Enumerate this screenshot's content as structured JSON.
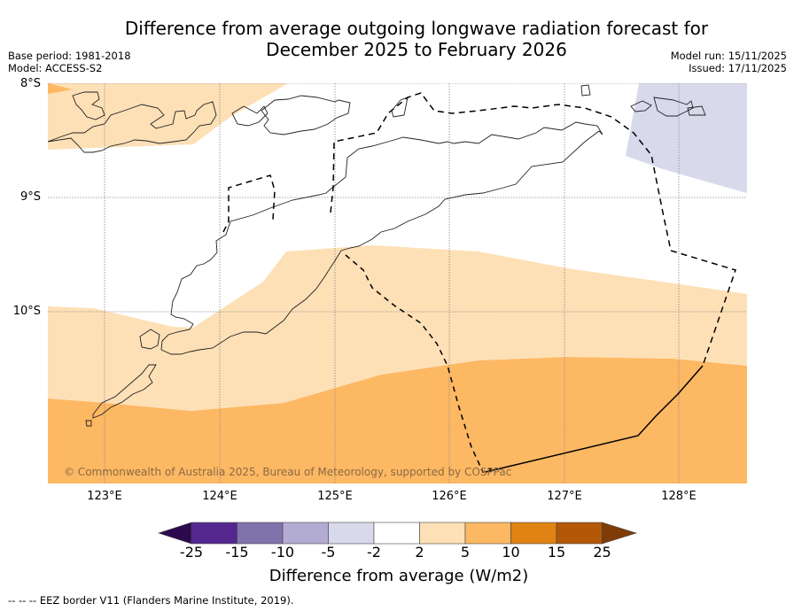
{
  "title": {
    "line1": "Difference from average outgoing longwave radiation forecast for",
    "line2": "December 2025 to February 2026"
  },
  "meta_left": {
    "base_period": "Base period: 1981-2018",
    "model": "Model: ACCESS-S2"
  },
  "meta_right": {
    "model_run": "Model run: 15/11/2025",
    "issued": "Issued: 17/11/2025"
  },
  "map": {
    "lat_labels": [
      "8°S",
      "9°S",
      "10°S"
    ],
    "lon_labels": [
      "123°E",
      "124°E",
      "125°E",
      "126°E",
      "127°E",
      "128°E"
    ],
    "extent": {
      "lon_min": 122.5,
      "lon_max": 128.6,
      "lat_min": -11.5,
      "lat_max": -8.0
    },
    "copyright": "© Commonwealth of Australia 2025, Bureau of Meteorology, supported by COSPPac",
    "regions": [
      {
        "name": "light-orange-north",
        "category": "2 to 5"
      },
      {
        "name": "light-orange-middle",
        "category": "2 to 5"
      },
      {
        "name": "orange-south",
        "category": "5 to 10"
      },
      {
        "name": "lavender-northeast",
        "category": "-5 to -2"
      }
    ]
  },
  "colorbar": {
    "ticks": [
      "-25",
      "-15",
      "-10",
      "-5",
      "-2",
      "2",
      "5",
      "10",
      "15",
      "25"
    ],
    "colors": [
      "#2d0a4d",
      "#54278f",
      "#8073ac",
      "#b2abd2",
      "#d8daeb",
      "#ffffff",
      "#fee0b6",
      "#fdb863",
      "#e08214",
      "#b35806",
      "#7f3b08"
    ],
    "label": "Difference from average (W/m2)"
  },
  "footer": "--  --  -- EEZ border V11 (Flanders Marine Institute, 2019)."
}
